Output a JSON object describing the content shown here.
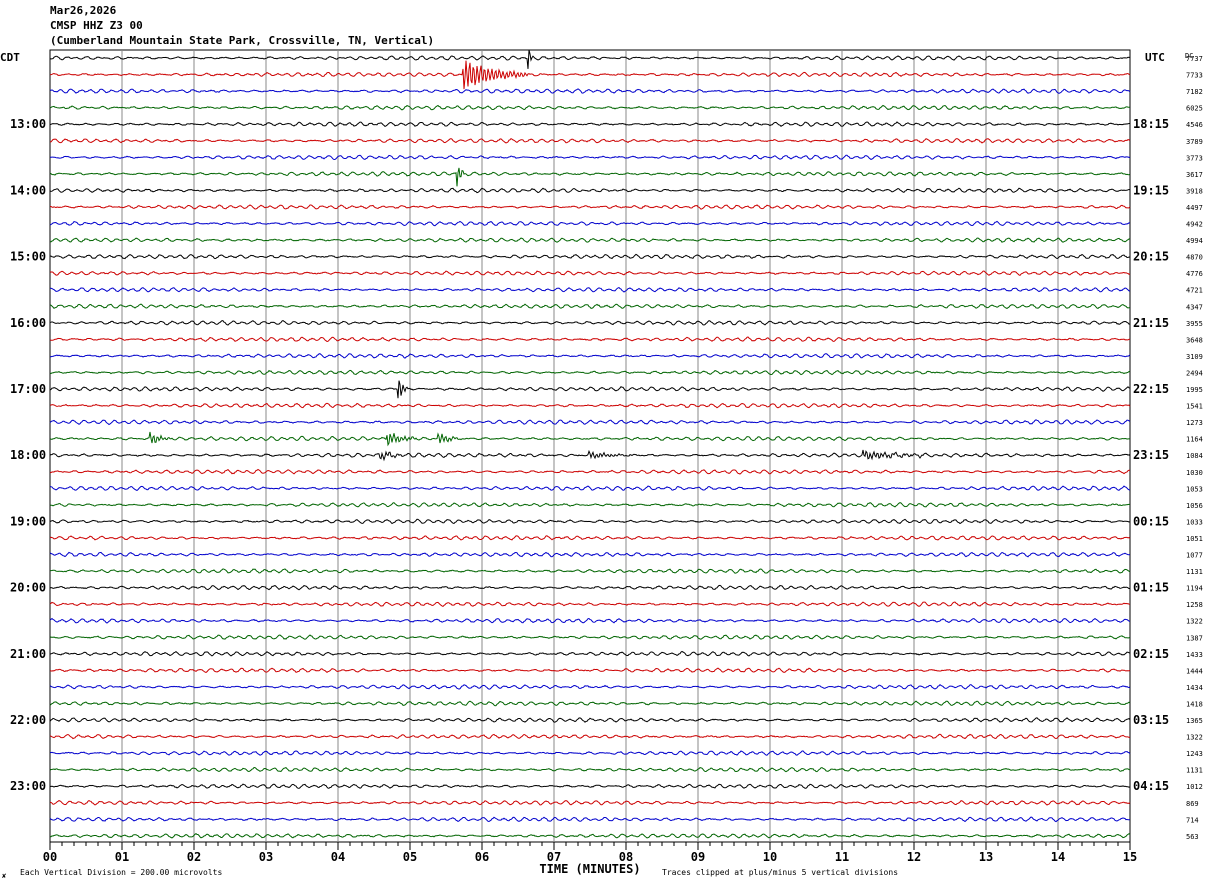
{
  "header": {
    "date": "Mar26,2026",
    "station": "CMSP HHZ Z3 00",
    "location": "(Cumberland Mountain State Park, Crossville, TN, Vertical)"
  },
  "chart_data": {
    "type": "line",
    "left_axis_label": "CDT",
    "right_axis_label": "UTC",
    "dc_label": "DC",
    "xlabel": "TIME (MINUTES)",
    "x_range": [
      0,
      15
    ],
    "x_ticks": [
      "00",
      "01",
      "02",
      "03",
      "04",
      "05",
      "06",
      "07",
      "08",
      "09",
      "10",
      "11",
      "12",
      "13",
      "14",
      "15"
    ],
    "left_hour_labels": [
      "13:00",
      "14:00",
      "15:00",
      "16:00",
      "17:00",
      "18:00",
      "19:00",
      "20:00",
      "21:00",
      "22:00",
      "23:00"
    ],
    "right_hour_labels": [
      "18:15",
      "19:15",
      "20:15",
      "21:15",
      "22:15",
      "23:15",
      "00:15",
      "01:15",
      "02:15",
      "03:15",
      "04:15"
    ],
    "trace_colors": [
      "#000000",
      "#cc0000",
      "#0000cc",
      "#006400"
    ],
    "dc_offsets": [
      "7737",
      "7733",
      "7182",
      "6025",
      "4546",
      "3789",
      "3773",
      "3617",
      "3918",
      "4497",
      "4942",
      "4994",
      "4870",
      "4776",
      "4721",
      "4347",
      "3955",
      "3648",
      "3109",
      "2494",
      "1995",
      "1541",
      "1273",
      "1164",
      "1084",
      "1030",
      "1053",
      "1056",
      "1033",
      "1051",
      "1077",
      "1131",
      "1194",
      "1258",
      "1322",
      "1387",
      "1433",
      "1444",
      "1434",
      "1418",
      "1365",
      "1322",
      "1243",
      "1131",
      "1012",
      "869",
      "714",
      "563"
    ],
    "events": [
      {
        "trace": 0,
        "minute": 6.65,
        "amplitude": 1.6,
        "duration_min": 0.05
      },
      {
        "trace": 1,
        "minute": 5.75,
        "amplitude": 1.8,
        "duration_min": 0.9
      },
      {
        "trace": 7,
        "minute": 5.65,
        "amplitude": 1.5,
        "duration_min": 0.12
      },
      {
        "trace": 20,
        "minute": 4.85,
        "amplitude": 1.4,
        "duration_min": 0.12
      },
      {
        "trace": 23,
        "minute": 1.4,
        "amplitude": 0.7,
        "duration_min": 0.3
      },
      {
        "trace": 23,
        "minute": 4.7,
        "amplitude": 0.8,
        "duration_min": 0.4
      },
      {
        "trace": 23,
        "minute": 5.4,
        "amplitude": 0.7,
        "duration_min": 0.3
      },
      {
        "trace": 24,
        "minute": 4.6,
        "amplitude": 0.5,
        "duration_min": 0.3
      },
      {
        "trace": 24,
        "minute": 11.3,
        "amplitude": 0.5,
        "duration_min": 0.9
      },
      {
        "trace": 24,
        "minute": 7.5,
        "amplitude": 0.4,
        "duration_min": 0.6
      }
    ]
  },
  "footer": {
    "scale_text": "Each Vertical Division =  200.00 microvolts",
    "clip_text": "Traces clipped at plus/minus 5 vertical divisions",
    "corner_mark": "✘"
  }
}
